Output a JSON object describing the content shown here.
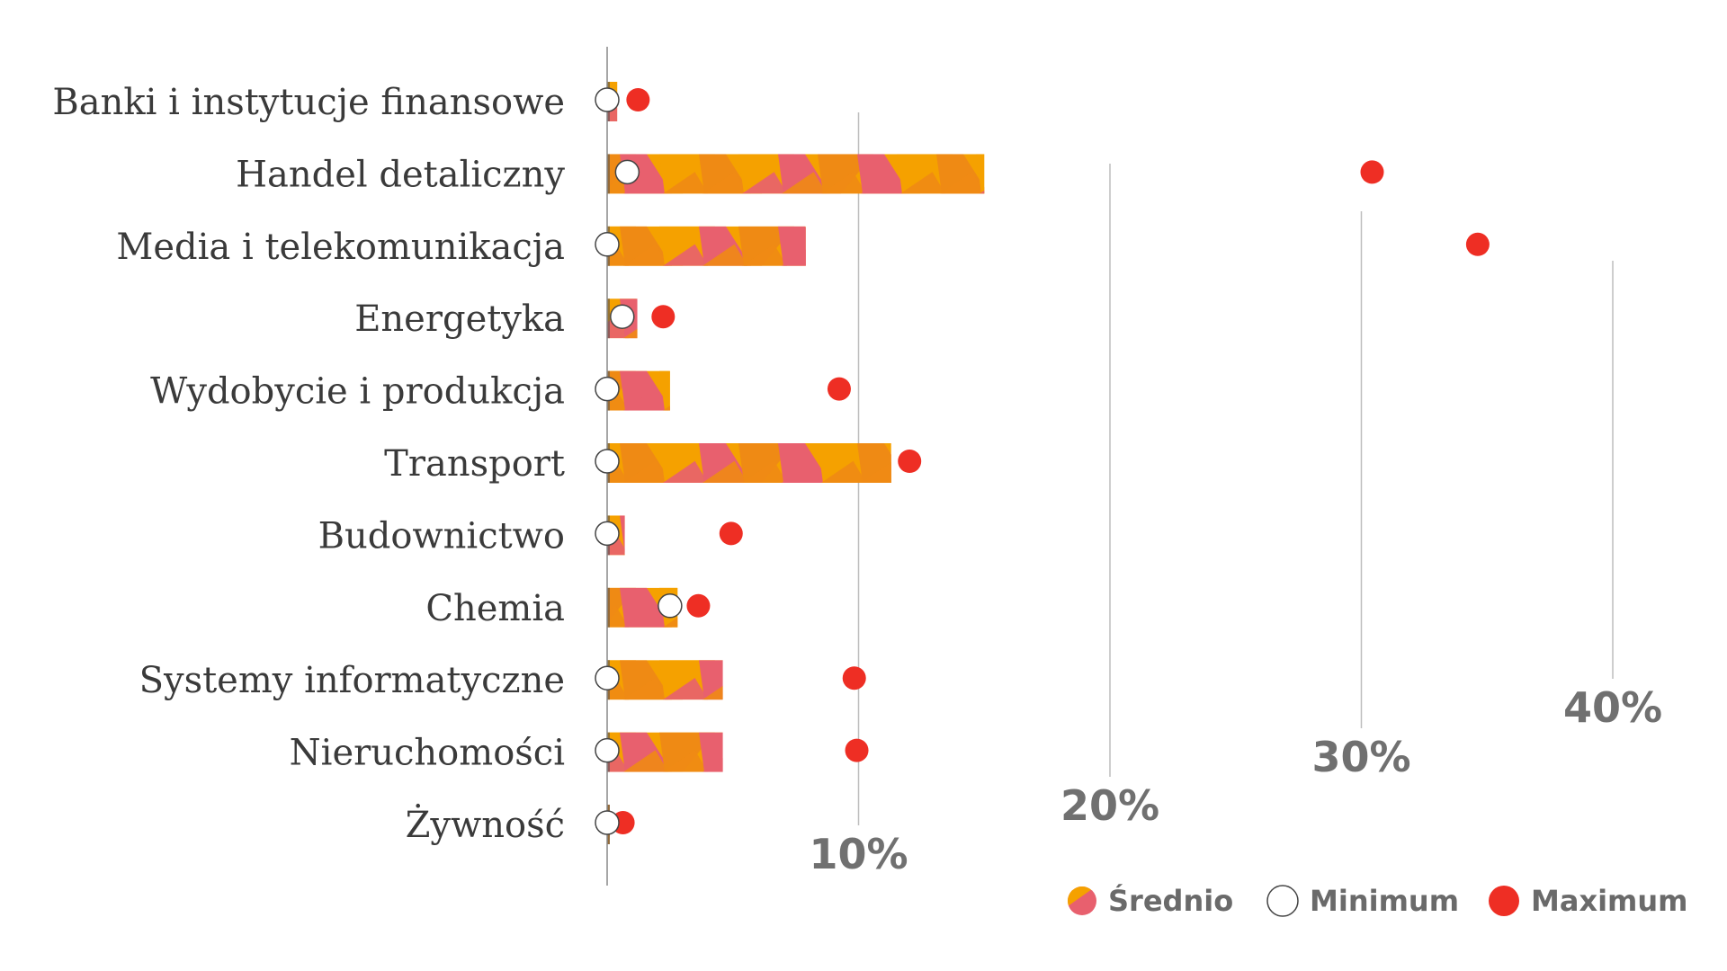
{
  "chart_data": {
    "type": "bar",
    "categories": [
      "Banki i instytucje finansowe",
      "Handel detaliczny",
      "Media i telekomunikacja",
      "Energetyka",
      "Wydobycie i produkcja",
      "Transport",
      "Budownictwo",
      "Chemia",
      "Systemy informatyczne",
      "Nieruchomości",
      "Żywność"
    ],
    "series": [
      {
        "name": "Średnio",
        "kind": "bar",
        "values": [
          0.4,
          15.0,
          7.9,
          1.2,
          2.5,
          11.3,
          0.7,
          2.8,
          4.6,
          4.6,
          0.1
        ]
      },
      {
        "name": "Minimum",
        "kind": "marker",
        "values": [
          0.0,
          0.8,
          0.0,
          0.6,
          0.0,
          0.0,
          0.0,
          2.5,
          0.0,
          0.0,
          0.0
        ]
      },
      {
        "name": "Maximum",
        "kind": "marker",
        "values": [
          0.8,
          30.0,
          34.2,
          1.8,
          8.8,
          11.6,
          4.5,
          3.2,
          9.4,
          9.5,
          0.2
        ]
      }
    ],
    "xticks": [
      "10%",
      "20%",
      "30%",
      "40%"
    ],
    "xtick_values": [
      10,
      20,
      30,
      40
    ],
    "xlim": [
      0,
      40
    ],
    "colors": {
      "bar_orange": "#f5a100",
      "bar_orange_dark": "#ef8a14",
      "bar_pink": "#e8606e",
      "maximum": "#ee2e24",
      "minimum_fill": "#ffffff",
      "minimum_stroke": "#444444",
      "gridline": "#bdbdbd",
      "axis": "#888888"
    },
    "legend": {
      "placement": "bottom-right"
    }
  }
}
